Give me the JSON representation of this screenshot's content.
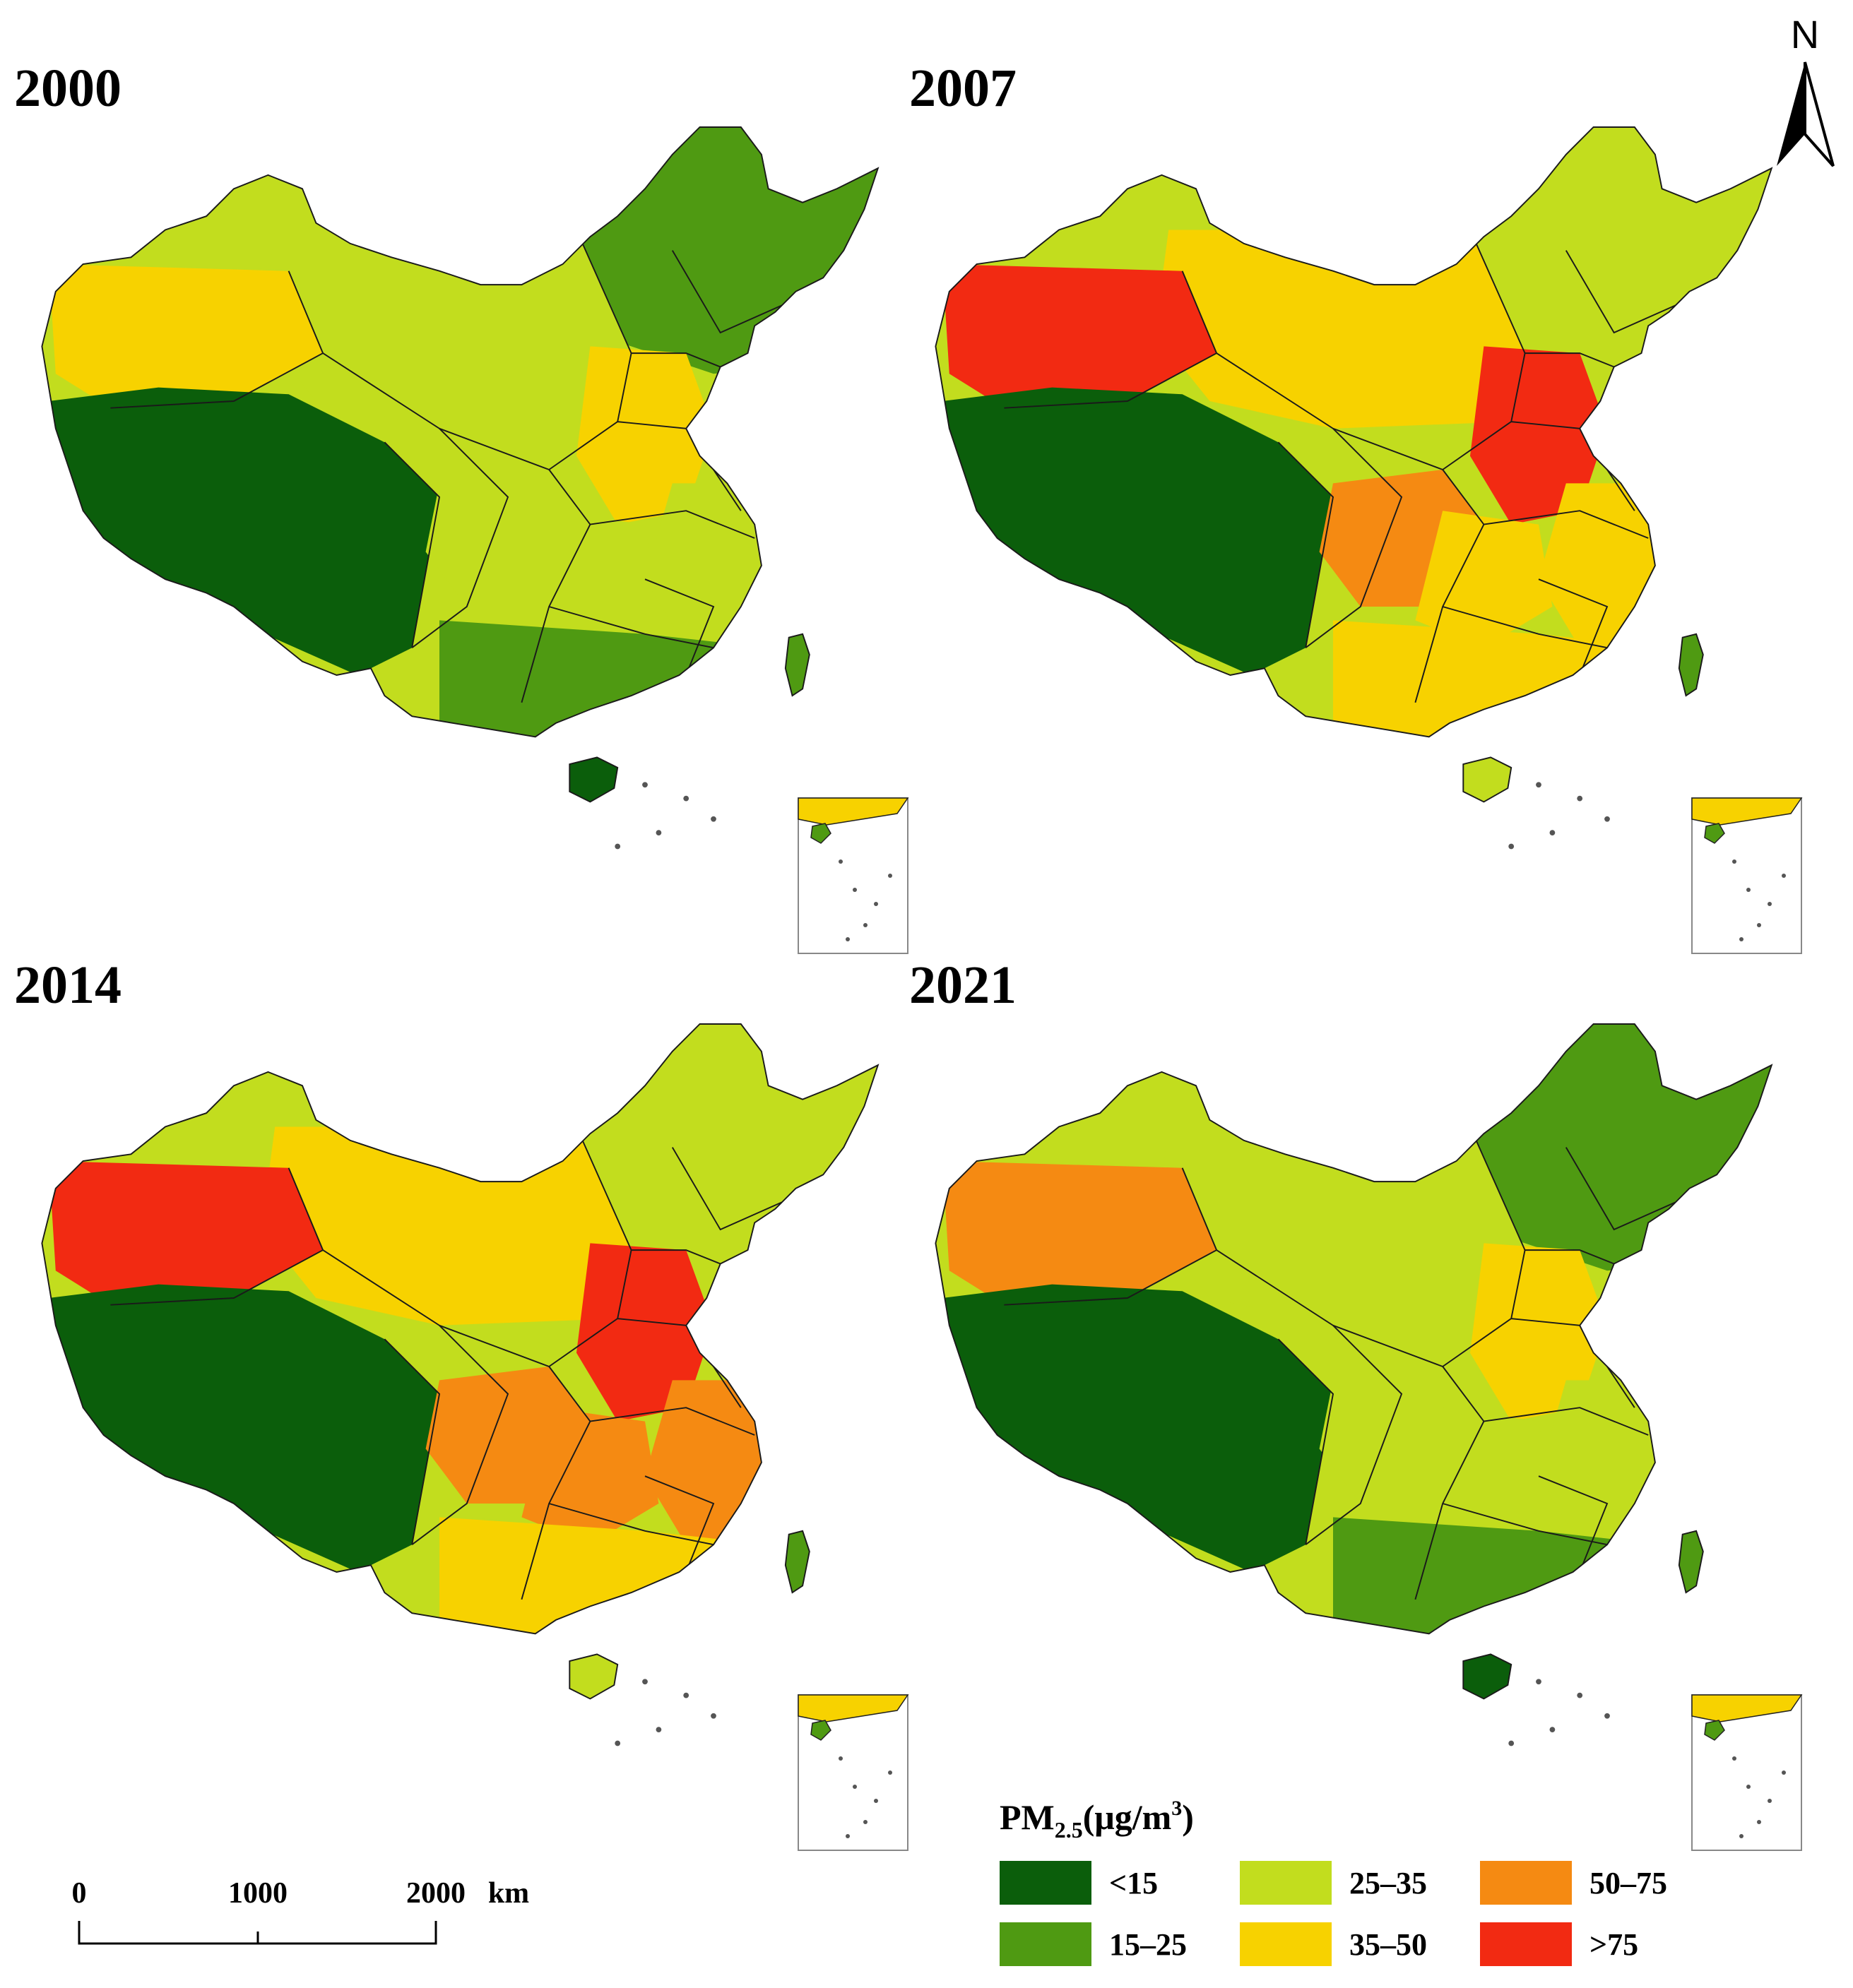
{
  "panels": [
    {
      "year": "2000",
      "levels": {
        "xinjiang": 3,
        "northwest": 2,
        "tibet": 0,
        "northeast": 1,
        "north_china": 3,
        "sichuan": 2,
        "central": 2,
        "south": 1,
        "east": 2
      }
    },
    {
      "year": "2007",
      "levels": {
        "xinjiang": 5,
        "northwest": 3,
        "tibet": 0,
        "northeast": 2,
        "north_china": 5,
        "sichuan": 4,
        "central": 3,
        "south": 3,
        "east": 3
      }
    },
    {
      "year": "2014",
      "levels": {
        "xinjiang": 5,
        "northwest": 3,
        "tibet": 0,
        "northeast": 2,
        "north_china": 5,
        "sichuan": 4,
        "central": 4,
        "south": 3,
        "east": 4
      }
    },
    {
      "year": "2021",
      "levels": {
        "xinjiang": 4,
        "northwest": 2,
        "tibet": 0,
        "northeast": 1,
        "north_china": 3,
        "sichuan": 2,
        "central": 2,
        "south": 1,
        "east": 2
      }
    }
  ],
  "north_arrow": {
    "label": "N"
  },
  "scale_bar": {
    "ticks": [
      "0",
      "1000",
      "2000"
    ],
    "unit": "km"
  },
  "legend": {
    "title_main": "PM",
    "title_sub": "2.5",
    "title_unit": "(μg/m",
    "title_sup": "3",
    "title_close": ")",
    "classes": [
      {
        "label": "<15",
        "color": "#0b5e0b"
      },
      {
        "label": "15–25",
        "color": "#4f9a12"
      },
      {
        "label": "25–35",
        "color": "#c2dd1e"
      },
      {
        "label": "35–50",
        "color": "#f7d200"
      },
      {
        "label": "50–75",
        "color": "#f58a12"
      },
      {
        "label": ">75",
        "color": "#f22a12"
      }
    ]
  }
}
